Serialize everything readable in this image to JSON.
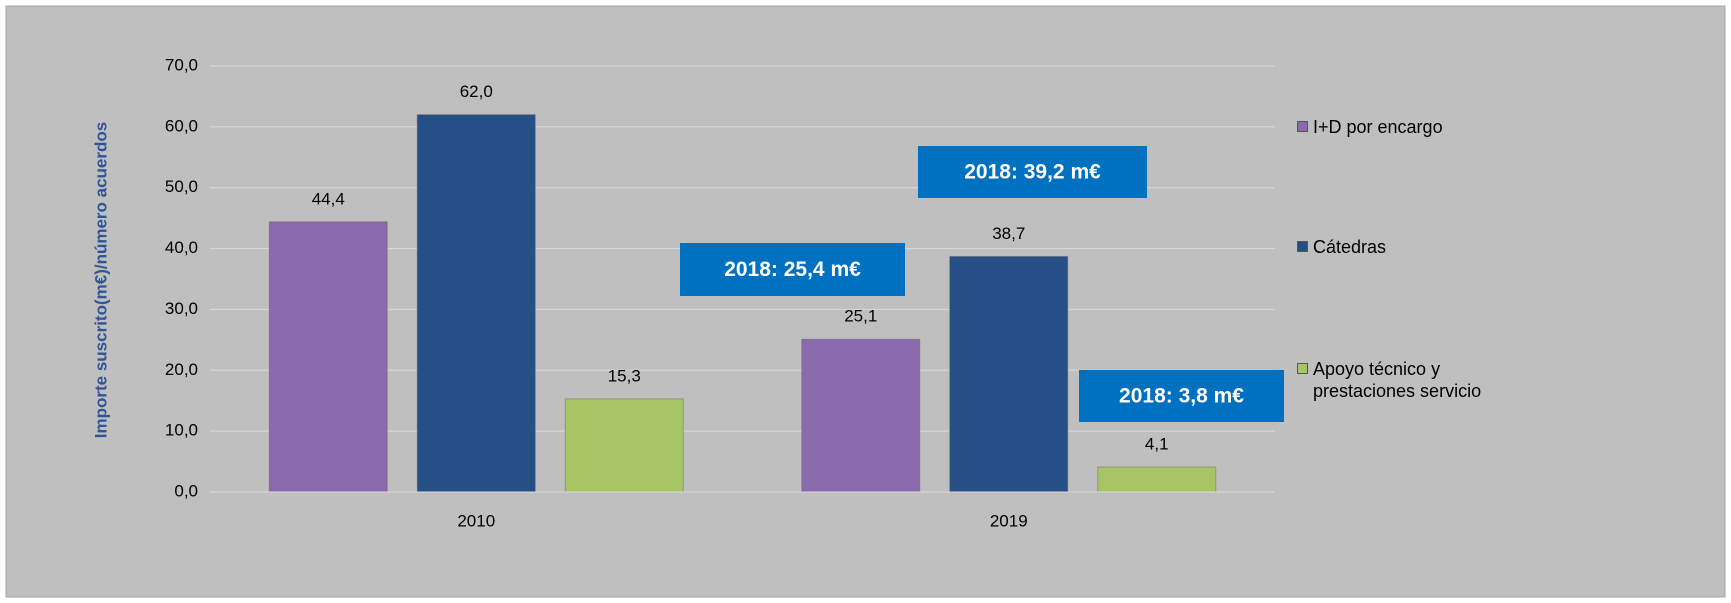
{
  "chart_data": {
    "type": "bar",
    "y_label": "Importe suscrito(m€)/número acuerdos",
    "categories": [
      "2010",
      "2019"
    ],
    "series": [
      {
        "name": "I+D por encargo",
        "color": "#8a6aac",
        "values": [
          44.4,
          25.1
        ],
        "value_labels": [
          "44,4",
          "25,1"
        ]
      },
      {
        "name": "Cátedras",
        "color": "#264f86",
        "values": [
          62.0,
          38.7
        ],
        "value_labels": [
          "62,0",
          "38,7"
        ]
      },
      {
        "name": "Apoyo técnico y prestaciones servicio",
        "color": "#a7c565",
        "values": [
          15.3,
          4.1
        ],
        "value_labels": [
          "15,3",
          "4,1"
        ]
      }
    ],
    "ylim": [
      0,
      70
    ],
    "yticks": [
      {
        "value": 0,
        "label": "0,0"
      },
      {
        "value": 10,
        "label": "10,0"
      },
      {
        "value": 20,
        "label": "20,0"
      },
      {
        "value": 30,
        "label": "30,0"
      },
      {
        "value": 40,
        "label": "40,0"
      },
      {
        "value": 50,
        "label": "50,0"
      },
      {
        "value": 60,
        "label": "60,0"
      },
      {
        "value": 70,
        "label": "70,0"
      }
    ],
    "grid": true,
    "legend": "right",
    "annotations": [
      "2018: 25,4 m€",
      "2018: 39,2 m€",
      "2018: 3,8 m€"
    ]
  }
}
